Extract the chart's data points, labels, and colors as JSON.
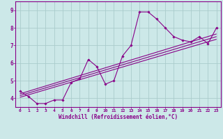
{
  "title": "",
  "xlabel": "Windchill (Refroidissement éolien,°C)",
  "bg_color": "#cce8e8",
  "grid_color": "#aacccc",
  "line_color": "#880088",
  "xlim": [
    -0.5,
    23.5
  ],
  "ylim": [
    3.5,
    9.5
  ],
  "xticks": [
    0,
    1,
    2,
    3,
    4,
    5,
    6,
    7,
    8,
    9,
    10,
    11,
    12,
    13,
    14,
    15,
    16,
    17,
    18,
    19,
    20,
    21,
    22,
    23
  ],
  "yticks": [
    4,
    5,
    6,
    7,
    8,
    9
  ],
  "main_x": [
    0,
    1,
    2,
    3,
    4,
    5,
    6,
    7,
    8,
    9,
    10,
    11,
    12,
    13,
    14,
    15,
    16,
    17,
    18,
    19,
    20,
    21,
    22,
    23
  ],
  "main_y": [
    4.4,
    4.1,
    3.7,
    3.7,
    3.9,
    3.9,
    4.9,
    5.1,
    6.2,
    5.8,
    4.8,
    5.0,
    6.4,
    7.0,
    8.9,
    8.9,
    8.5,
    8.0,
    7.5,
    7.3,
    7.2,
    7.5,
    7.1,
    8.0
  ],
  "line1_x": [
    0,
    23
  ],
  "line1_y": [
    4.05,
    7.35
  ],
  "line2_x": [
    0,
    23
  ],
  "line2_y": [
    4.15,
    7.5
  ],
  "line3_x": [
    0,
    23
  ],
  "line3_y": [
    4.25,
    7.65
  ]
}
